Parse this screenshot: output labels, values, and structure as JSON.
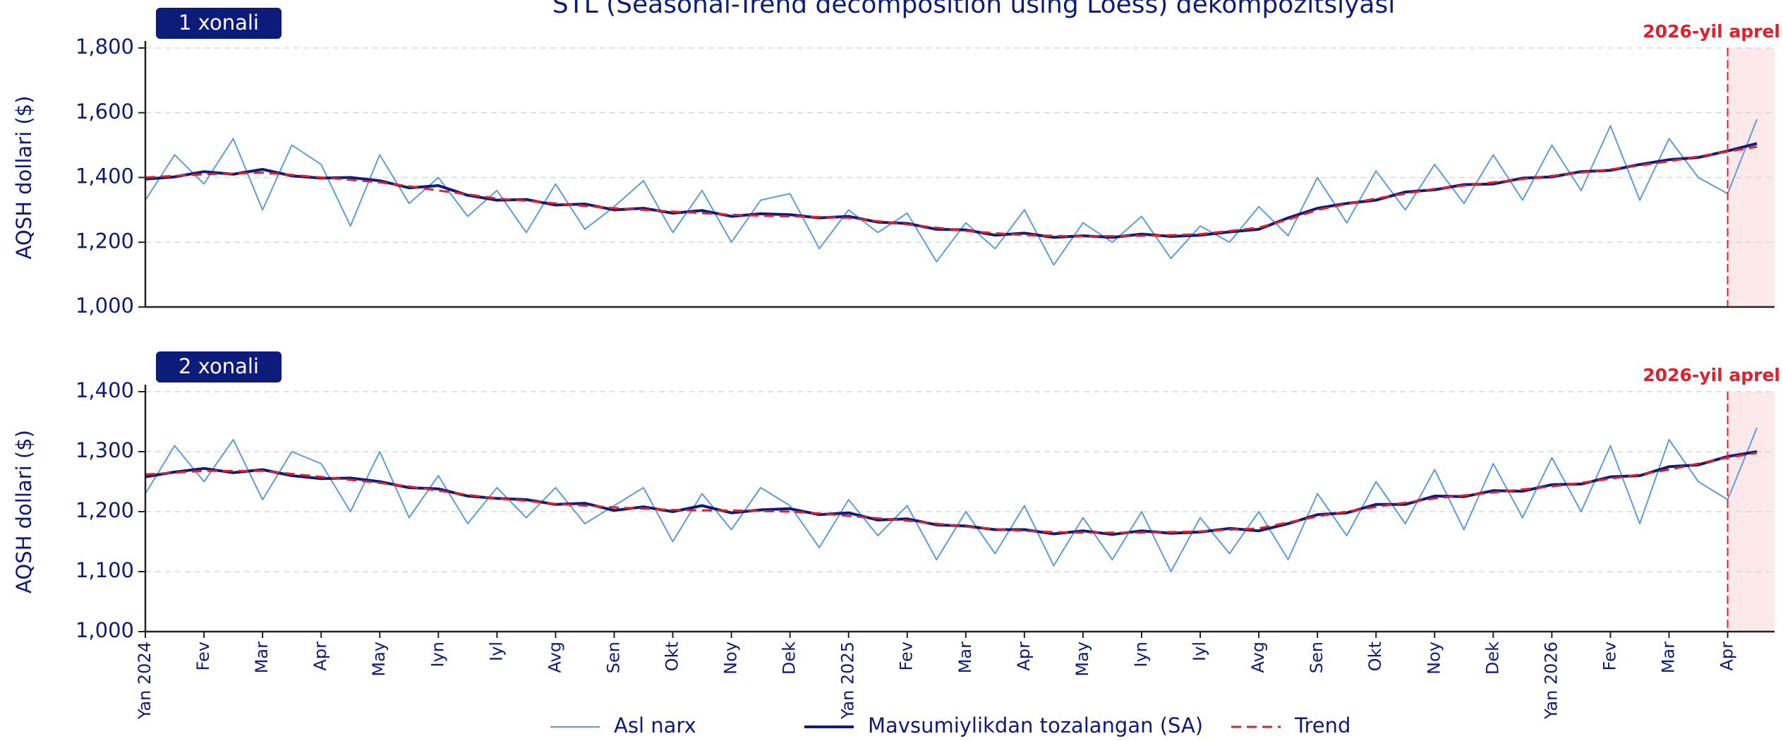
{
  "title": "STL (Seasonal-Trend decomposition using Loess) dekompozitsiyasi",
  "chart_data": [
    {
      "type": "line",
      "panel_label": "1 xonali",
      "ylabel": "AQSH dollari ($)",
      "ylim": [
        1000,
        1800
      ],
      "yticks": [
        {
          "value": 1000,
          "label": "1,000"
        },
        {
          "value": 1200,
          "label": "1,200"
        },
        {
          "value": 1400,
          "label": "1,400"
        },
        {
          "value": 1600,
          "label": "1,600"
        },
        {
          "value": 1800,
          "label": "1,800"
        }
      ],
      "grid": true,
      "annotation": {
        "text": "2026-yil aprel",
        "x_index": 54
      },
      "series": [
        {
          "name": "Asl narx",
          "color": "#5b9be6",
          "values": [
            1330,
            1470,
            1380,
            1520,
            1300,
            1500,
            1440,
            1250,
            1470,
            1320,
            1400,
            1280,
            1360,
            1230,
            1380,
            1240,
            1310,
            1390,
            1230,
            1360,
            1200,
            1330,
            1350,
            1180,
            1300,
            1230,
            1290,
            1140,
            1260,
            1180,
            1300,
            1130,
            1260,
            1200,
            1280,
            1150,
            1250,
            1200,
            1310,
            1220,
            1400,
            1260,
            1420,
            1300,
            1440,
            1320,
            1470,
            1330,
            1500,
            1360,
            1560,
            1330,
            1520,
            1400,
            1350,
            1580
          ]
        },
        {
          "name": "Mavsumiylikdan tozalangan (SA)",
          "color": "#0d1b7a",
          "values": [
            1395,
            1402,
            1418,
            1410,
            1425,
            1405,
            1398,
            1400,
            1390,
            1368,
            1375,
            1345,
            1330,
            1332,
            1315,
            1318,
            1300,
            1305,
            1290,
            1298,
            1280,
            1288,
            1285,
            1275,
            1280,
            1262,
            1258,
            1240,
            1238,
            1222,
            1228,
            1215,
            1220,
            1215,
            1225,
            1218,
            1222,
            1232,
            1240,
            1275,
            1305,
            1320,
            1330,
            1355,
            1362,
            1378,
            1380,
            1398,
            1402,
            1418,
            1422,
            1440,
            1455,
            1462,
            1482,
            1505
          ]
        },
        {
          "name": "Trend",
          "color": "#e0202a",
          "dashed": true,
          "values": [
            1400,
            1405,
            1410,
            1412,
            1415,
            1408,
            1400,
            1393,
            1385,
            1373,
            1360,
            1348,
            1335,
            1328,
            1320,
            1312,
            1305,
            1300,
            1295,
            1290,
            1285,
            1282,
            1280,
            1278,
            1275,
            1265,
            1255,
            1245,
            1235,
            1228,
            1222,
            1220,
            1218,
            1219,
            1220,
            1222,
            1225,
            1235,
            1245,
            1270,
            1300,
            1318,
            1335,
            1350,
            1365,
            1375,
            1385,
            1395,
            1405,
            1415,
            1425,
            1437,
            1450,
            1465,
            1480,
            1495
          ]
        }
      ]
    },
    {
      "type": "line",
      "panel_label": "2 xonali",
      "ylabel": "AQSH dollari ($)",
      "ylim": [
        1000,
        1400
      ],
      "yticks": [
        {
          "value": 1000,
          "label": "1,000"
        },
        {
          "value": 1100,
          "label": "1,100"
        },
        {
          "value": 1200,
          "label": "1,200"
        },
        {
          "value": 1300,
          "label": "1,300"
        },
        {
          "value": 1400,
          "label": "1,400"
        }
      ],
      "grid": true,
      "annotation": {
        "text": "2026-yil aprel",
        "x_index": 54
      },
      "categories": [
        "Yan 2024",
        null,
        "Fev",
        null,
        "Mar",
        null,
        "Apr",
        null,
        "May",
        null,
        "Iyn",
        null,
        "Iyl",
        null,
        "Avg",
        null,
        "Sen",
        null,
        "Okt",
        null,
        "Noy",
        null,
        "Dek",
        null,
        "Yan 2025",
        null,
        "Fev",
        null,
        "Mar",
        null,
        "Apr",
        null,
        "May",
        null,
        "Iyn",
        null,
        "Iyl",
        null,
        "Avg",
        null,
        "Sen",
        null,
        "Okt",
        null,
        "Noy",
        null,
        "Dek",
        null,
        "Yan 2026",
        null,
        "Fev",
        null,
        "Mar",
        null,
        "Apr",
        null
      ],
      "series": [
        {
          "name": "Asl narx",
          "color": "#5b9be6",
          "values": [
            1230,
            1310,
            1250,
            1320,
            1220,
            1300,
            1280,
            1200,
            1300,
            1190,
            1260,
            1180,
            1240,
            1190,
            1240,
            1180,
            1210,
            1240,
            1150,
            1230,
            1170,
            1240,
            1210,
            1140,
            1220,
            1160,
            1210,
            1120,
            1200,
            1130,
            1210,
            1110,
            1190,
            1120,
            1200,
            1100,
            1190,
            1130,
            1200,
            1120,
            1230,
            1160,
            1250,
            1180,
            1270,
            1170,
            1280,
            1190,
            1290,
            1200,
            1310,
            1180,
            1320,
            1250,
            1220,
            1340
          ]
        },
        {
          "name": "Mavsumiylikdan tozalangan (SA)",
          "color": "#0d1b7a",
          "values": [
            1258,
            1266,
            1272,
            1265,
            1270,
            1260,
            1255,
            1256,
            1250,
            1240,
            1238,
            1226,
            1222,
            1220,
            1212,
            1214,
            1202,
            1208,
            1200,
            1210,
            1198,
            1203,
            1205,
            1195,
            1198,
            1186,
            1188,
            1178,
            1176,
            1170,
            1170,
            1163,
            1168,
            1162,
            1168,
            1164,
            1166,
            1172,
            1168,
            1180,
            1195,
            1198,
            1212,
            1212,
            1226,
            1225,
            1235,
            1234,
            1245,
            1246,
            1258,
            1260,
            1275,
            1278,
            1292,
            1300
          ]
        },
        {
          "name": "Trend",
          "color": "#e0202a",
          "dashed": true,
          "values": [
            1262,
            1265,
            1268,
            1268,
            1268,
            1263,
            1258,
            1253,
            1248,
            1242,
            1235,
            1228,
            1222,
            1218,
            1213,
            1210,
            1207,
            1205,
            1203,
            1202,
            1202,
            1201,
            1200,
            1197,
            1193,
            1189,
            1185,
            1180,
            1175,
            1171,
            1168,
            1166,
            1165,
            1165,
            1165,
            1166,
            1167,
            1170,
            1172,
            1182,
            1192,
            1200,
            1208,
            1215,
            1222,
            1227,
            1232,
            1237,
            1242,
            1248,
            1255,
            1262,
            1270,
            1280,
            1290,
            1298
          ]
        }
      ]
    }
  ]
}
